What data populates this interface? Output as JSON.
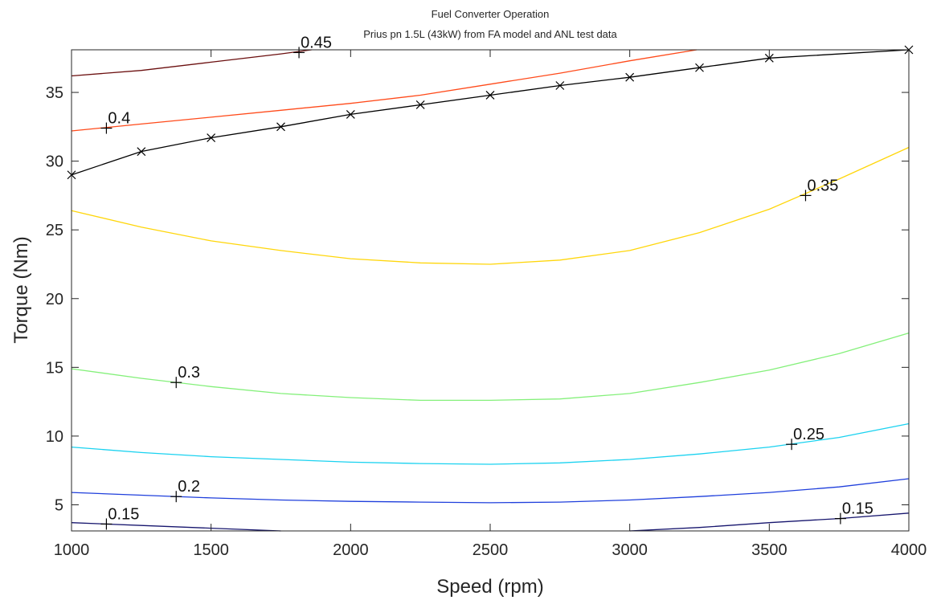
{
  "chart_data": {
    "type": "line",
    "title": "Fuel Converter Operation",
    "subtitle": "Prius pn 1.5L (43kW) from FA model and ANL test data",
    "xlabel": "Speed (rpm)",
    "ylabel": "Torque (Nm)",
    "xlim": [
      1000,
      4000
    ],
    "ylim": [
      3.1,
      38.1
    ],
    "xticks": [
      "1000",
      "1500",
      "2000",
      "2500",
      "3000",
      "3500",
      "4000"
    ],
    "yticks": [
      "5",
      "10",
      "15",
      "20",
      "25",
      "30",
      "35"
    ],
    "grid": false,
    "series": [
      {
        "color": "#6b0f0f",
        "x": [
          1000,
          1250,
          1500,
          1750,
          1860
        ],
        "y": [
          36.2,
          36.6,
          37.2,
          37.8,
          38.1
        ]
      },
      {
        "color": "#ff4a1a",
        "x": [
          1000,
          1250,
          1500,
          1750,
          2000,
          2250,
          2500,
          2750,
          3000,
          3240
        ],
        "y": [
          32.2,
          32.7,
          33.2,
          33.7,
          34.2,
          34.8,
          35.6,
          36.4,
          37.3,
          38.1
        ]
      },
      {
        "color": "#ffd60a",
        "x": [
          1000,
          1250,
          1500,
          1750,
          2000,
          2250,
          2500,
          2750,
          3000,
          3250,
          3500,
          3750,
          4000
        ],
        "y": [
          26.4,
          25.2,
          24.2,
          23.5,
          22.9,
          22.6,
          22.5,
          22.8,
          23.5,
          24.8,
          26.5,
          28.7,
          31.0
        ]
      },
      {
        "color": "#84f07a",
        "x": [
          1000,
          1250,
          1500,
          1750,
          2000,
          2250,
          2500,
          2750,
          3000,
          3250,
          3500,
          3750,
          4000
        ],
        "y": [
          14.9,
          14.2,
          13.6,
          13.1,
          12.8,
          12.6,
          12.6,
          12.7,
          13.1,
          13.9,
          14.8,
          16.0,
          17.5
        ]
      },
      {
        "color": "#1ad2f0",
        "x": [
          1000,
          1250,
          1500,
          1750,
          2000,
          2250,
          2500,
          2750,
          3000,
          3250,
          3500,
          3750,
          4000
        ],
        "y": [
          9.2,
          8.8,
          8.5,
          8.3,
          8.1,
          8.0,
          7.95,
          8.05,
          8.3,
          8.7,
          9.2,
          9.9,
          10.9
        ]
      },
      {
        "color": "#1f3fdc",
        "x": [
          1000,
          1250,
          1500,
          1750,
          2000,
          2250,
          2500,
          2750,
          3000,
          3250,
          3500,
          3750,
          4000
        ],
        "y": [
          5.9,
          5.7,
          5.5,
          5.35,
          5.25,
          5.2,
          5.15,
          5.2,
          5.35,
          5.6,
          5.9,
          6.3,
          6.9
        ]
      },
      {
        "color": "#17166e",
        "x": [
          1000,
          1250,
          1500,
          1750
        ],
        "y": [
          3.7,
          3.5,
          3.3,
          3.1
        ]
      },
      {
        "color": "#17166e",
        "x": [
          3000,
          3250,
          3500,
          3750,
          4000
        ],
        "y": [
          3.1,
          3.35,
          3.7,
          4.0,
          4.4
        ]
      },
      {
        "color": "#000000",
        "marker": "x",
        "x": [
          1000,
          1250,
          1500,
          1750,
          2000,
          2250,
          2500,
          2750,
          3000,
          3250,
          3500,
          4000
        ],
        "y": [
          29.0,
          30.7,
          31.7,
          32.5,
          33.4,
          34.1,
          34.8,
          35.5,
          36.1,
          36.8,
          37.5,
          38.1
        ]
      }
    ],
    "contour_labels": [
      {
        "text": "0.45",
        "x": 1815,
        "y": 37.9
      },
      {
        "text": "0.4",
        "x": 1125,
        "y": 32.4
      },
      {
        "text": "0.35",
        "x": 3630,
        "y": 27.5
      },
      {
        "text": "0.3",
        "x": 1375,
        "y": 13.9
      },
      {
        "text": "0.25",
        "x": 3580,
        "y": 9.4
      },
      {
        "text": "0.2",
        "x": 1375,
        "y": 5.6
      },
      {
        "text": "0.15",
        "x": 1125,
        "y": 3.6
      },
      {
        "text": "0.15",
        "x": 3755,
        "y": 4.0
      }
    ]
  }
}
